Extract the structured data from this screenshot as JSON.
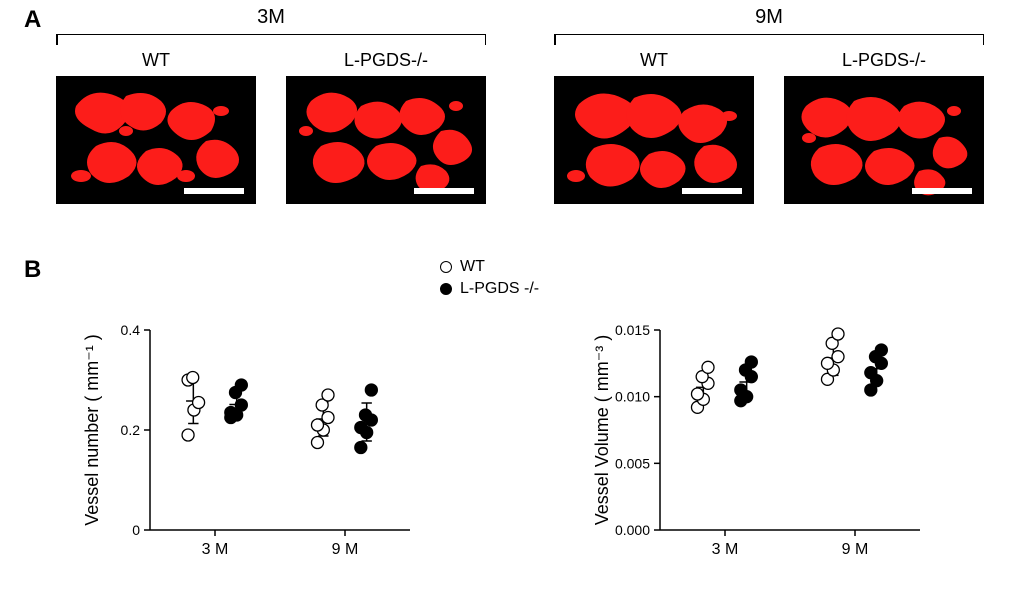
{
  "panelA": {
    "label": "A",
    "groups": [
      {
        "age_label": "3M",
        "images": [
          {
            "label": "WT"
          },
          {
            "label": "L-PGDS-/-"
          }
        ]
      },
      {
        "age_label": "9M",
        "images": [
          {
            "label": "WT"
          },
          {
            "label": "L-PGDS-/-"
          }
        ]
      }
    ],
    "micrograph_bg": "#000000",
    "signal_color": "#fc1d1a",
    "scalebar_color": "#ffffff"
  },
  "panelB": {
    "label": "B",
    "legend": [
      {
        "marker": "open",
        "label": "WT"
      },
      {
        "marker": "filled",
        "label": "L-PGDS -/-"
      }
    ],
    "charts": [
      {
        "type": "scatter",
        "ylabel": "Vessel number ( mm⁻¹ )",
        "xlabel_categories": [
          "3 M",
          "9 M"
        ],
        "ylim": [
          0,
          0.4
        ],
        "yticks": [
          0,
          0.2,
          0.4
        ],
        "ytick_labels": [
          "0",
          "0.2",
          "0.4"
        ],
        "xlabel": "",
        "groups": [
          {
            "x": 1,
            "condition": "WT",
            "marker": "open",
            "values": [
              0.19,
              0.24,
              0.3,
              0.255,
              0.305
            ],
            "mean": 0.258,
            "sd": 0.045
          },
          {
            "x": 2,
            "condition": "KO",
            "marker": "filled",
            "values": [
              0.225,
              0.23,
              0.235,
              0.25,
              0.275,
              0.29
            ],
            "mean": 0.251,
            "sd": 0.026
          },
          {
            "x": 4,
            "condition": "WT",
            "marker": "open",
            "values": [
              0.175,
              0.2,
              0.21,
              0.225,
              0.25,
              0.27
            ],
            "mean": 0.222,
            "sd": 0.034
          },
          {
            "x": 5,
            "condition": "KO",
            "marker": "filled",
            "values": [
              0.165,
              0.195,
              0.205,
              0.22,
              0.23,
              0.28
            ],
            "mean": 0.216,
            "sd": 0.038
          }
        ],
        "x_range": [
          0,
          6
        ],
        "point_size": 6,
        "jitter": 0.18,
        "errcap": 0.12
      },
      {
        "type": "scatter",
        "ylabel": "Vessel Volume ( mm⁻³ )",
        "xlabel_categories": [
          "3 M",
          "9 M"
        ],
        "ylim": [
          0,
          0.015
        ],
        "yticks": [
          0.0,
          0.005,
          0.01,
          0.015
        ],
        "ytick_labels": [
          "0.000",
          "0.005",
          "0.010",
          "0.015"
        ],
        "xlabel": "",
        "groups": [
          {
            "x": 1,
            "condition": "WT",
            "marker": "open",
            "values": [
              0.0092,
              0.0098,
              0.0102,
              0.011,
              0.0115,
              0.0122
            ],
            "mean": 0.0107,
            "sd": 0.0011
          },
          {
            "x": 2,
            "condition": "KO",
            "marker": "filled",
            "values": [
              0.0097,
              0.01,
              0.0105,
              0.0115,
              0.012,
              0.0126
            ],
            "mean": 0.0111,
            "sd": 0.0012
          },
          {
            "x": 4,
            "condition": "WT",
            "marker": "open",
            "values": [
              0.0113,
              0.012,
              0.0125,
              0.013,
              0.014,
              0.0147
            ],
            "mean": 0.0129,
            "sd": 0.0013
          },
          {
            "x": 5,
            "condition": "KO",
            "marker": "filled",
            "values": [
              0.0105,
              0.0112,
              0.0118,
              0.0125,
              0.013,
              0.0135
            ],
            "mean": 0.0121,
            "sd": 0.0011
          }
        ],
        "x_range": [
          0,
          6
        ],
        "point_size": 6,
        "jitter": 0.18,
        "errcap": 0.12
      }
    ],
    "colors": {
      "axis": "#000000",
      "point_stroke": "#000000",
      "point_fill_open": "#ffffff",
      "point_fill_filled": "#000000",
      "background": "#ffffff"
    }
  },
  "typography": {
    "panel_label_pt": 18,
    "group_label_pt": 15,
    "img_label_pt": 13,
    "axis_label_pt": 13,
    "tick_label_pt": 10,
    "legend_pt": 12,
    "font_family": "Arial"
  }
}
